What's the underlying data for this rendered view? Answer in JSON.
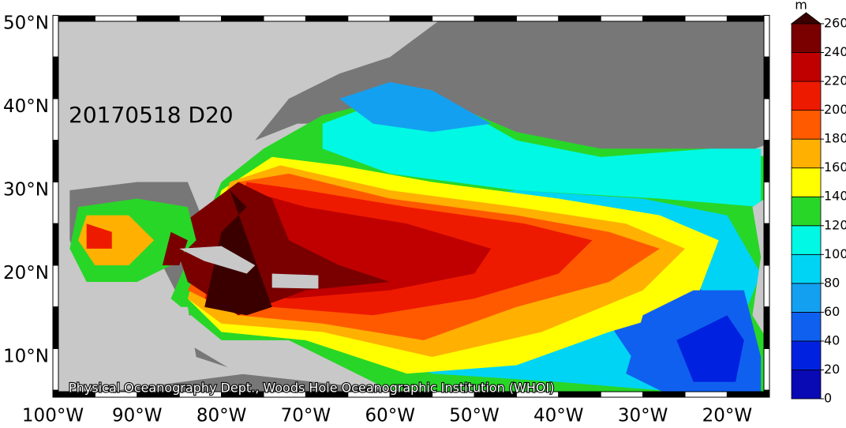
{
  "map": {
    "label": "20170518 D20",
    "credit": "Physical Oceanography Dept., Woods Hole Oceanographic Institution (WHOI)",
    "lat_ticks": [
      "50°N",
      "40°N",
      "30°N",
      "20°N",
      "10°N"
    ],
    "lon_ticks": [
      "100°W",
      "90°W",
      "80°W",
      "70°W",
      "60°W",
      "50°W",
      "40°W",
      "30°W",
      "20°W"
    ]
  },
  "colorbar": {
    "unit": "m",
    "ticks": [
      0,
      20,
      40,
      60,
      80,
      100,
      120,
      140,
      160,
      180,
      200,
      220,
      240,
      260
    ],
    "colors": [
      "#0a0ab4",
      "#0022e0",
      "#1060f0",
      "#14a0f0",
      "#00d4f4",
      "#00f8e4",
      "#28d628",
      "#ffff00",
      "#ffb000",
      "#ff5a00",
      "#ee1a00",
      "#c00000",
      "#7a0000",
      "#3a0000"
    ]
  }
}
